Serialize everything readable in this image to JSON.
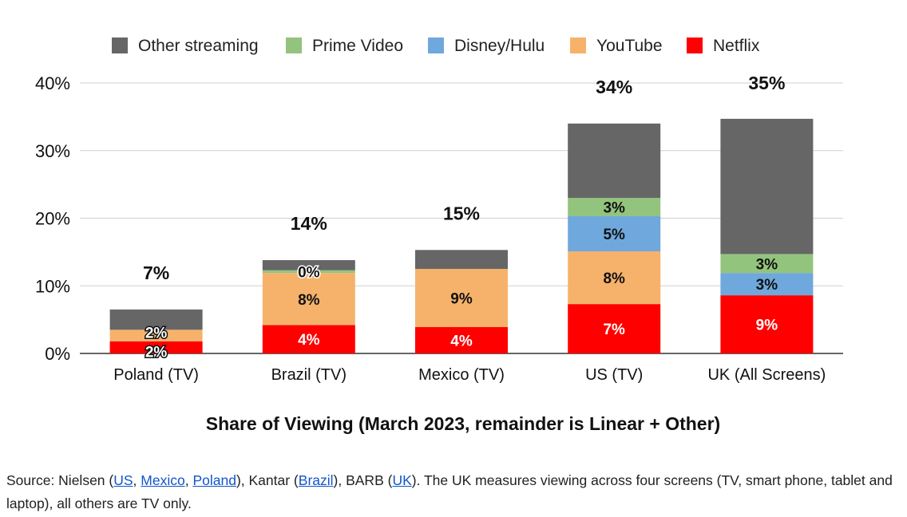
{
  "chart_data": {
    "type": "bar",
    "stacked": true,
    "title": "Share of Viewing (March 2023, remainder is Linear + Other)",
    "categories": [
      "Poland (TV)",
      "Brazil (TV)",
      "Mexico (TV)",
      "US (TV)",
      "UK (All Screens)"
    ],
    "totals": [
      6.5,
      13.8,
      15.3,
      34.0,
      34.7
    ],
    "total_labels": [
      "7%",
      "14%",
      "15%",
      "34%",
      "35%"
    ],
    "ylim": [
      0,
      40
    ],
    "yticks": [
      0,
      10,
      20,
      30,
      40
    ],
    "ytick_labels": [
      "0%",
      "10%",
      "20%",
      "30%",
      "40%"
    ],
    "grid": true,
    "legend_position": "top",
    "legend_order": [
      "Other streaming",
      "Prime Video",
      "Disney/Hulu",
      "YouTube",
      "Netflix"
    ],
    "series": [
      {
        "name": "Netflix",
        "color": "#ff0000",
        "label_color": "#ffffff",
        "values": [
          1.8,
          4.2,
          3.9,
          7.3,
          8.6
        ],
        "labels": [
          "2%",
          "4%",
          "4%",
          "7%",
          "9%"
        ],
        "label_outline": [
          true,
          false,
          false,
          false,
          false
        ]
      },
      {
        "name": "YouTube",
        "color": "#f6b26b",
        "label_color": "#111111",
        "values": [
          1.7,
          7.7,
          8.6,
          7.8,
          0
        ],
        "labels": [
          "2%",
          "8%",
          "9%",
          "8%",
          ""
        ],
        "label_outline": [
          true,
          false,
          false,
          false,
          false
        ]
      },
      {
        "name": "Disney/Hulu",
        "color": "#6fa8dc",
        "label_color": "#111111",
        "values": [
          0,
          0,
          0,
          5.2,
          3.3
        ],
        "labels": [
          "",
          "",
          "",
          "5%",
          "3%"
        ],
        "label_outline": [
          false,
          false,
          false,
          false,
          false
        ]
      },
      {
        "name": "Prime Video",
        "color": "#93c47d",
        "label_color": "#111111",
        "values": [
          0,
          0.4,
          0,
          2.7,
          2.8
        ],
        "labels": [
          "",
          "0%",
          "",
          "3%",
          "3%"
        ],
        "label_outline": [
          false,
          true,
          false,
          false,
          false
        ]
      },
      {
        "name": "Other streaming",
        "color": "#666666",
        "label_color": "#ffffff",
        "values": [
          3.0,
          1.5,
          2.8,
          11.0,
          20.0
        ],
        "labels": [
          "",
          "",
          "",
          "",
          ""
        ],
        "label_outline": [
          false,
          false,
          false,
          false,
          false
        ]
      }
    ]
  },
  "source": {
    "prefix": "Source: Nielsen (",
    "link_us": "US",
    "sep1": ", ",
    "link_mexico": "Mexico",
    "sep2": ", ",
    "link_poland": "Poland",
    "mid1": "), Kantar (",
    "link_brazil": "Brazil",
    "mid2": "), BARB (",
    "link_uk": "UK",
    "suffix": "). The UK measures viewing across four screens (TV, smart phone, tablet and laptop), all others are TV only."
  }
}
